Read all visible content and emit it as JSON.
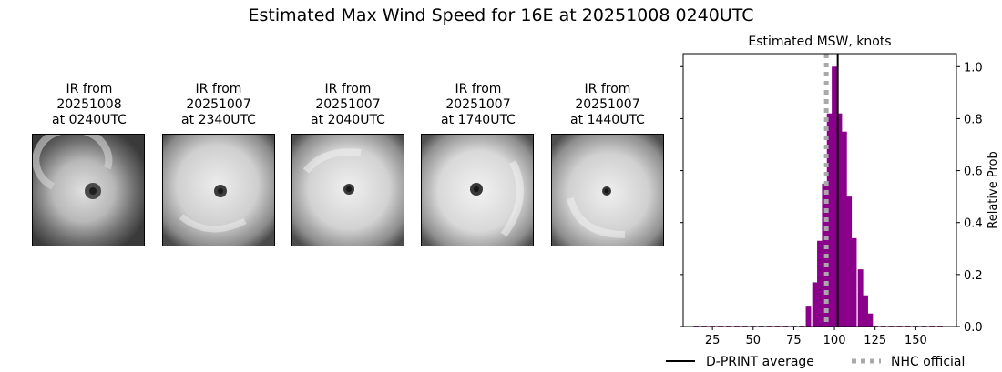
{
  "title": "Estimated Max Wind Speed for 16E at 20251008 0240UTC",
  "panels": [
    {
      "caption": "IR from\n20251008\nat 0240UTC"
    },
    {
      "caption": "IR from\n20251007\nat 2340UTC"
    },
    {
      "caption": "IR from\n20251007\nat 2040UTC"
    },
    {
      "caption": "IR from\n20251007\nat 1740UTC"
    },
    {
      "caption": "IR from\n20251007\nat 1440UTC"
    }
  ],
  "chart_data": {
    "type": "bar",
    "title": "Estimated MSW, knots",
    "xlabel": "",
    "ylabel": "Relative Prob",
    "xlim": [
      7,
      175
    ],
    "ylim": [
      0,
      1.05
    ],
    "xticks": [
      25,
      50,
      75,
      100,
      125,
      150
    ],
    "yticks": [
      0.0,
      0.2,
      0.4,
      0.6,
      0.8,
      1.0
    ],
    "yticklabels": [
      "0.0",
      "0.2",
      "0.4",
      "0.6",
      "0.8",
      "1.0"
    ],
    "bar_color": "#8b008b",
    "bars": [
      {
        "x": 15,
        "y": 0.003
      },
      {
        "x": 20,
        "y": 0.003
      },
      {
        "x": 25,
        "y": 0.003
      },
      {
        "x": 30,
        "y": 0.003
      },
      {
        "x": 35,
        "y": 0.003
      },
      {
        "x": 40,
        "y": 0.003
      },
      {
        "x": 45,
        "y": 0.003
      },
      {
        "x": 50,
        "y": 0.003
      },
      {
        "x": 55,
        "y": 0.003
      },
      {
        "x": 60,
        "y": 0.003
      },
      {
        "x": 65,
        "y": 0.003
      },
      {
        "x": 70,
        "y": 0.003
      },
      {
        "x": 75,
        "y": 0.003
      },
      {
        "x": 80,
        "y": 0.003
      },
      {
        "x": 84,
        "y": 0.08
      },
      {
        "x": 88,
        "y": 0.17
      },
      {
        "x": 91,
        "y": 0.33
      },
      {
        "x": 94,
        "y": 0.55
      },
      {
        "x": 97,
        "y": 0.82
      },
      {
        "x": 100,
        "y": 1.0
      },
      {
        "x": 103,
        "y": 0.82
      },
      {
        "x": 106,
        "y": 0.75
      },
      {
        "x": 109,
        "y": 0.5
      },
      {
        "x": 112,
        "y": 0.34
      },
      {
        "x": 116,
        "y": 0.22
      },
      {
        "x": 119,
        "y": 0.12
      },
      {
        "x": 122,
        "y": 0.05
      },
      {
        "x": 125,
        "y": 0.003
      },
      {
        "x": 130,
        "y": 0.003
      },
      {
        "x": 135,
        "y": 0.003
      },
      {
        "x": 140,
        "y": 0.003
      },
      {
        "x": 145,
        "y": 0.003
      },
      {
        "x": 150,
        "y": 0.003
      },
      {
        "x": 155,
        "y": 0.003
      },
      {
        "x": 160,
        "y": 0.003
      },
      {
        "x": 165,
        "y": 0.003
      }
    ],
    "bar_width": 3.3,
    "dprint_average": 102,
    "nhc_official": 95,
    "legend": {
      "placement": "bottom",
      "dprint_label": "D-PRINT average",
      "nhc_label": "NHC official"
    }
  }
}
